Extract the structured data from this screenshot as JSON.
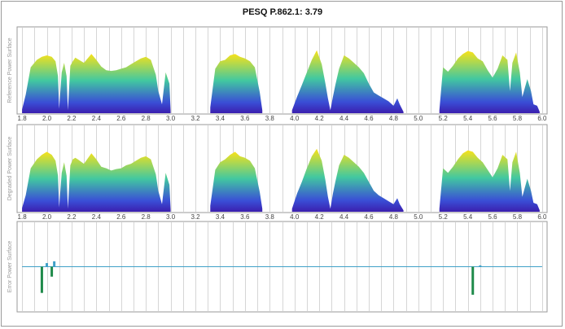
{
  "title": "PESQ P.862.1: 3.79",
  "colors": {
    "grad_top": "#f7e21a",
    "grad_mid": "#42c8a0",
    "grad_low": "#3a4ed6",
    "grad_base": "#3b1fae",
    "error_line": "#3fa0c8",
    "error_spike": "#1f8a4a",
    "grid": "#d6d6d6"
  },
  "chart_data": [
    {
      "type": "area",
      "ylabel": "Reference Power Surface",
      "xlim": [
        1.76,
        6.04
      ],
      "xticks": [
        "1.8",
        "2.0",
        "2.2",
        "2.4",
        "2.6",
        "2.8",
        "3.0",
        "3.2",
        "3.4",
        "3.6",
        "3.8",
        "4.0",
        "4.2",
        "4.4",
        "4.6",
        "4.8",
        "5.0",
        "5.2",
        "5.4",
        "5.6",
        "5.8",
        "6.0"
      ],
      "ylim": [
        0,
        1
      ],
      "segments": [
        {
          "x": [
            1.8,
            1.83,
            1.87,
            1.92,
            1.96,
            2.0,
            2.04,
            2.07,
            2.09,
            2.1,
            2.12,
            2.14,
            2.16,
            2.17,
            2.19,
            2.21,
            2.23,
            2.25,
            2.3,
            2.36,
            2.4,
            2.44,
            2.48,
            2.52,
            2.56,
            2.6,
            2.64,
            2.68,
            2.72,
            2.76,
            2.8,
            2.84,
            2.88,
            2.9,
            2.93,
            2.96,
            2.99,
            3.0
          ],
          "y": [
            0.05,
            0.25,
            0.62,
            0.72,
            0.76,
            0.78,
            0.76,
            0.7,
            0.5,
            0.06,
            0.55,
            0.68,
            0.5,
            0.04,
            0.64,
            0.7,
            0.75,
            0.73,
            0.68,
            0.8,
            0.72,
            0.63,
            0.58,
            0.57,
            0.58,
            0.6,
            0.62,
            0.66,
            0.7,
            0.74,
            0.76,
            0.72,
            0.52,
            0.3,
            0.12,
            0.55,
            0.4,
            0.03
          ]
        },
        {
          "x": [
            3.32,
            3.36,
            3.4,
            3.44,
            3.48,
            3.52,
            3.56,
            3.6,
            3.64,
            3.68,
            3.72,
            3.74
          ],
          "y": [
            0.08,
            0.6,
            0.7,
            0.72,
            0.78,
            0.8,
            0.76,
            0.74,
            0.7,
            0.62,
            0.28,
            0.04
          ]
        },
        {
          "x": [
            3.98,
            4.02,
            4.06,
            4.1,
            4.14,
            4.18,
            4.22,
            4.25,
            4.27,
            4.29,
            4.31,
            4.33,
            4.36,
            4.4,
            4.44,
            4.48,
            4.52,
            4.56,
            4.6,
            4.64,
            4.68,
            4.72,
            4.76,
            4.8,
            4.83,
            4.85,
            4.88
          ],
          "y": [
            0.04,
            0.22,
            0.38,
            0.55,
            0.72,
            0.85,
            0.66,
            0.4,
            0.2,
            0.04,
            0.22,
            0.38,
            0.6,
            0.78,
            0.74,
            0.68,
            0.62,
            0.54,
            0.4,
            0.28,
            0.24,
            0.2,
            0.16,
            0.1,
            0.2,
            0.12,
            0.02
          ]
        },
        {
          "x": [
            5.17,
            5.2,
            5.24,
            5.28,
            5.32,
            5.36,
            5.4,
            5.44,
            5.48,
            5.52,
            5.56,
            5.6,
            5.64,
            5.68,
            5.72,
            5.74,
            5.76,
            5.79,
            5.82,
            5.84,
            5.86,
            5.88,
            5.91,
            5.93,
            5.96,
            5.98
          ],
          "y": [
            0.04,
            0.62,
            0.56,
            0.64,
            0.74,
            0.8,
            0.84,
            0.82,
            0.74,
            0.7,
            0.58,
            0.48,
            0.6,
            0.78,
            0.72,
            0.3,
            0.68,
            0.82,
            0.55,
            0.22,
            0.34,
            0.46,
            0.3,
            0.12,
            0.1,
            0.02
          ]
        }
      ]
    },
    {
      "type": "area",
      "ylabel": "Degraded Power Surface",
      "xlim": [
        1.76,
        6.04
      ],
      "xticks": [
        "1.8",
        "2.0",
        "2.2",
        "2.4",
        "2.6",
        "2.8",
        "3.0",
        "3.2",
        "3.4",
        "3.6",
        "3.8",
        "4.0",
        "4.2",
        "4.4",
        "4.6",
        "4.8",
        "5.0",
        "5.2",
        "5.4",
        "5.6",
        "5.8",
        "6.0"
      ],
      "ylim": [
        0,
        1
      ],
      "segments": [
        {
          "x": [
            1.8,
            1.83,
            1.87,
            1.92,
            1.96,
            2.0,
            2.04,
            2.07,
            2.09,
            2.1,
            2.12,
            2.14,
            2.16,
            2.17,
            2.19,
            2.21,
            2.23,
            2.25,
            2.3,
            2.36,
            2.4,
            2.44,
            2.48,
            2.52,
            2.56,
            2.6,
            2.64,
            2.68,
            2.72,
            2.76,
            2.8,
            2.84,
            2.88,
            2.9,
            2.93,
            2.96,
            2.99,
            3.0
          ],
          "y": [
            0.05,
            0.22,
            0.58,
            0.7,
            0.76,
            0.8,
            0.76,
            0.68,
            0.48,
            0.06,
            0.52,
            0.66,
            0.48,
            0.04,
            0.62,
            0.7,
            0.72,
            0.7,
            0.64,
            0.78,
            0.7,
            0.6,
            0.58,
            0.55,
            0.57,
            0.58,
            0.62,
            0.64,
            0.68,
            0.72,
            0.74,
            0.7,
            0.5,
            0.28,
            0.1,
            0.52,
            0.36,
            0.03
          ]
        },
        {
          "x": [
            3.32,
            3.36,
            3.4,
            3.44,
            3.48,
            3.52,
            3.56,
            3.6,
            3.64,
            3.68,
            3.72,
            3.74
          ],
          "y": [
            0.08,
            0.56,
            0.66,
            0.7,
            0.76,
            0.8,
            0.74,
            0.72,
            0.68,
            0.58,
            0.26,
            0.04
          ]
        },
        {
          "x": [
            3.98,
            4.02,
            4.06,
            4.1,
            4.14,
            4.18,
            4.22,
            4.25,
            4.27,
            4.29,
            4.31,
            4.33,
            4.36,
            4.4,
            4.44,
            4.48,
            4.52,
            4.56,
            4.6,
            4.64,
            4.68,
            4.72,
            4.76,
            4.8,
            4.83,
            4.85,
            4.88
          ],
          "y": [
            0.04,
            0.24,
            0.4,
            0.58,
            0.74,
            0.84,
            0.68,
            0.42,
            0.2,
            0.04,
            0.24,
            0.4,
            0.62,
            0.76,
            0.72,
            0.66,
            0.6,
            0.52,
            0.4,
            0.28,
            0.22,
            0.18,
            0.14,
            0.1,
            0.18,
            0.1,
            0.02
          ]
        },
        {
          "x": [
            5.17,
            5.2,
            5.24,
            5.28,
            5.32,
            5.36,
            5.4,
            5.44,
            5.48,
            5.52,
            5.56,
            5.6,
            5.64,
            5.68,
            5.72,
            5.74,
            5.76,
            5.79,
            5.82,
            5.84,
            5.86,
            5.88,
            5.91,
            5.93,
            5.96,
            5.98
          ],
          "y": [
            0.04,
            0.58,
            0.52,
            0.6,
            0.7,
            0.78,
            0.82,
            0.8,
            0.72,
            0.66,
            0.56,
            0.46,
            0.58,
            0.76,
            0.7,
            0.28,
            0.66,
            0.8,
            0.52,
            0.2,
            0.32,
            0.44,
            0.28,
            0.12,
            0.1,
            0.02
          ]
        }
      ]
    },
    {
      "type": "line",
      "ylabel": "Error Power Surface",
      "xlim": [
        1.76,
        6.04
      ],
      "ylim": [
        -1,
        1
      ],
      "baseline": 0,
      "spikes": [
        {
          "x": 1.96,
          "y": -0.58
        },
        {
          "x": 2.0,
          "y": 0.08
        },
        {
          "x": 2.04,
          "y": -0.22
        },
        {
          "x": 2.06,
          "y": 0.12
        },
        {
          "x": 5.44,
          "y": -0.62
        },
        {
          "x": 5.5,
          "y": 0.03
        }
      ]
    }
  ]
}
